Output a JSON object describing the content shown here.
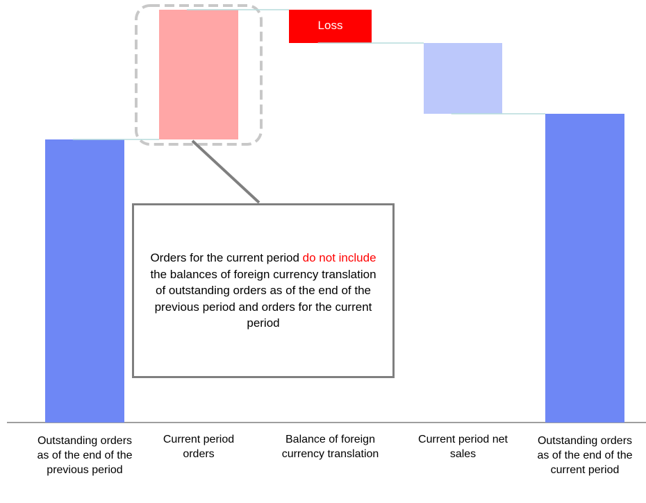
{
  "chart_data": {
    "type": "waterfall",
    "categories": [
      "Outstanding orders as of the end of the previous period",
      "Current period orders",
      "Balance of foreign currency translation",
      "Current period net sales",
      "Outstanding orders as of the end of the current period"
    ],
    "values": [
      408,
      187,
      -48,
      -102,
      445
    ],
    "kinds": [
      "total",
      "delta",
      "delta",
      "delta",
      "total"
    ],
    "colors": [
      "#6e87f5",
      "#ffa6a6",
      "#ff0000",
      "#bcc8fb",
      "#6e87f5"
    ],
    "ylim": [
      0,
      600
    ],
    "annotations": {
      "loss": "Loss",
      "callout": [
        "Orders for the current period ",
        "do not include",
        " the balances of foreign currency translation of outstanding orders as of the end of the previous period and orders for the current period"
      ]
    }
  }
}
